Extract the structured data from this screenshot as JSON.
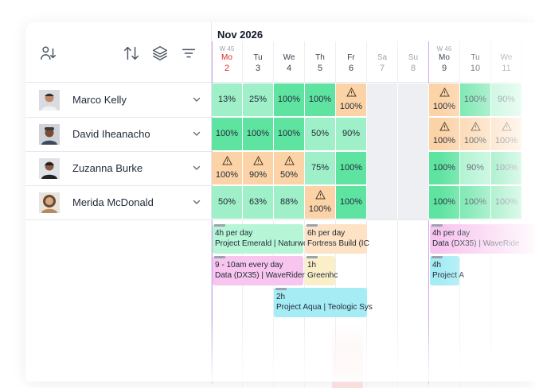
{
  "toolbar": {
    "icons": [
      "sort-users-icon",
      "sort-arrows-icon",
      "layers-icon",
      "filter-icon"
    ]
  },
  "people": [
    {
      "name": "Marco Kelly"
    },
    {
      "name": "David Iheanacho"
    },
    {
      "name": "Zuzanna Burke"
    },
    {
      "name": "Merida McDonald"
    }
  ],
  "calendar": {
    "month": "Nov 2026",
    "weeks": [
      "W 45",
      "W 46"
    ],
    "days": [
      {
        "dn": "Mo",
        "dd": "2"
      },
      {
        "dn": "Tu",
        "dd": "3"
      },
      {
        "dn": "We",
        "dd": "4"
      },
      {
        "dn": "Th",
        "dd": "5"
      },
      {
        "dn": "Fr",
        "dd": "6"
      },
      {
        "dn": "Sa",
        "dd": "7"
      },
      {
        "dn": "Su",
        "dd": "8"
      },
      {
        "dn": "Mo",
        "dd": "9"
      },
      {
        "dn": "Tu",
        "dd": "10"
      },
      {
        "dn": "We",
        "dd": "11"
      }
    ]
  },
  "utilization": [
    [
      "13%",
      "25%",
      "100%",
      "100%",
      "100%",
      "",
      "",
      "100%",
      "100%",
      "90%"
    ],
    [
      "100%",
      "100%",
      "100%",
      "50%",
      "90%",
      "",
      "",
      "100%",
      "100%",
      "100%"
    ],
    [
      "100%",
      "90%",
      "50%",
      "75%",
      "100%",
      "",
      "",
      "100%",
      "90%",
      "100%"
    ],
    [
      "50%",
      "63%",
      "88%",
      "100%",
      "100%",
      "",
      "",
      "100%",
      "100%",
      "100%"
    ]
  ],
  "tasks": [
    {
      "t1": "4h per day",
      "t2": "Project Emerald | Naturwo"
    },
    {
      "t1": "6h per day",
      "t2": "Fortress Build (IC"
    },
    {
      "t1": "9 - 10am every day",
      "t2": "Data (DX35) | WaveRider |"
    },
    {
      "t1": "1h",
      "t2": "Greenhc"
    },
    {
      "t1": "2h",
      "t2": "Project Aqua | Teologic Sys"
    },
    {
      "t1": "4h per day",
      "t2": "Data (DX35) | WaveRide"
    },
    {
      "t1": "4h",
      "t2": "Project A"
    }
  ],
  "colors": {
    "green": "#5fe3a0",
    "light_green": "#9ff0c8",
    "orange": "#fbd3a7",
    "today": "#dc2626"
  }
}
